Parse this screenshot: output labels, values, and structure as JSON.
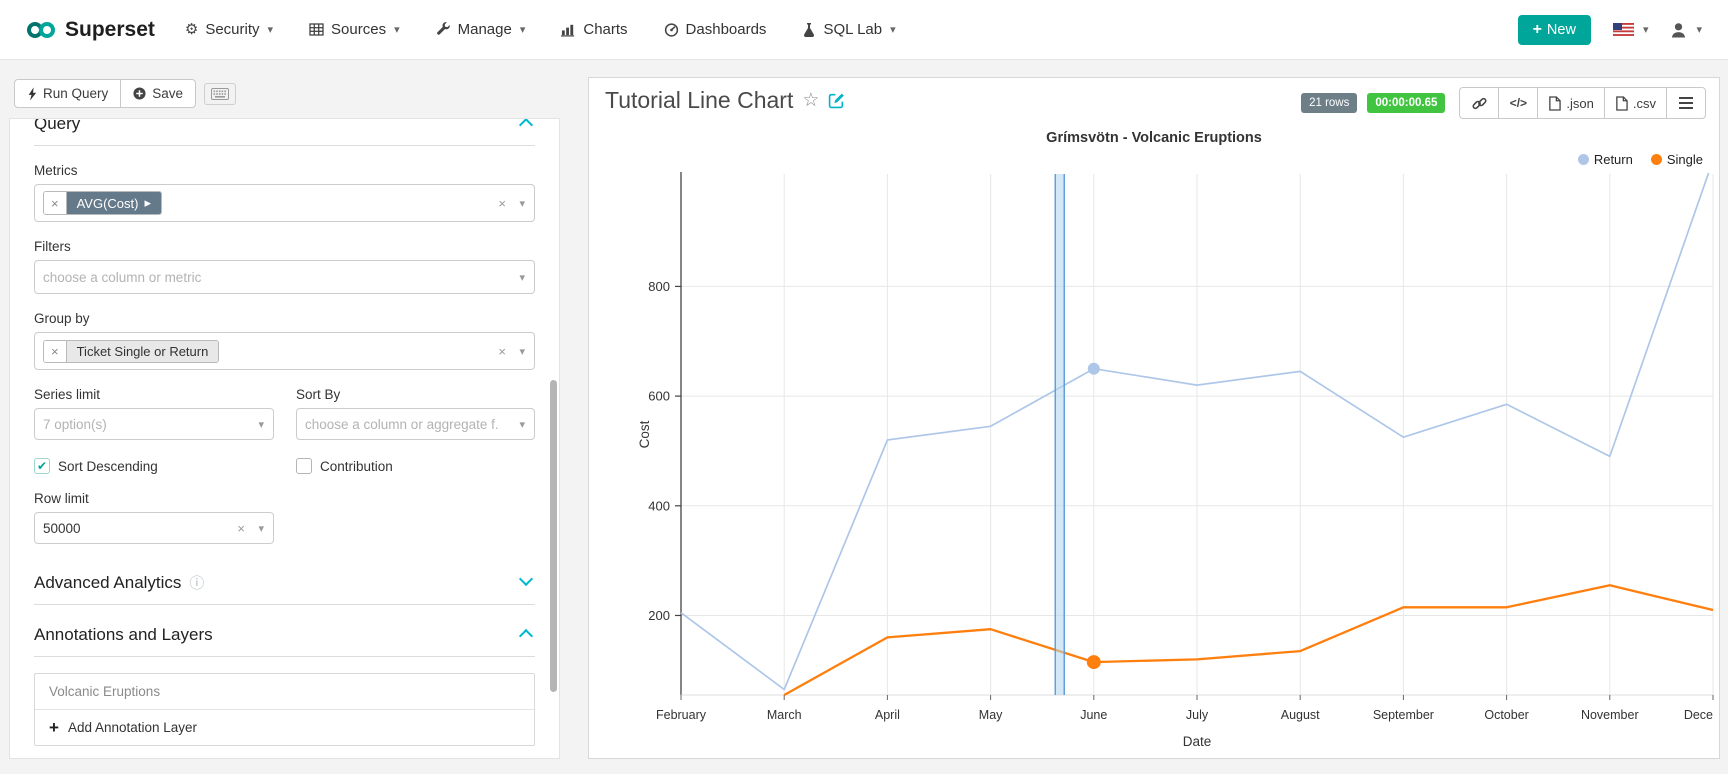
{
  "navbar": {
    "brand": "Superset",
    "items": [
      {
        "label": "Security",
        "icon": "gear-icon",
        "caret": "▾"
      },
      {
        "label": "Sources",
        "icon": "table-icon",
        "caret": "▾"
      },
      {
        "label": "Manage",
        "icon": "wrench-icon",
        "caret": "▾"
      },
      {
        "label": "Charts",
        "icon": "bar-chart-icon",
        "caret": ""
      },
      {
        "label": "Dashboards",
        "icon": "gauge-icon",
        "caret": ""
      },
      {
        "label": "SQL Lab",
        "icon": "flask-icon",
        "caret": "▾"
      }
    ],
    "new_button_label": "New"
  },
  "toolbar": {
    "run_query_label": "Run Query",
    "save_label": "Save"
  },
  "panel": {
    "query_section_title": "Query",
    "metrics_label": "Metrics",
    "metric_token": "AVG(Cost)",
    "metric_token_caret": "▸",
    "filters_label": "Filters",
    "filters_placeholder": "choose a column or metric",
    "group_by_label": "Group by",
    "group_by_token": "Ticket Single or Return",
    "series_limit_label": "Series limit",
    "series_limit_placeholder": "7 option(s)",
    "sort_by_label": "Sort By",
    "sort_by_placeholder": "choose a column or aggregate f.",
    "sort_descending_label": "Sort Descending",
    "sort_descending_checked": true,
    "contribution_label": "Contribution",
    "contribution_checked": false,
    "row_limit_label": "Row limit",
    "row_limit_value": "50000",
    "advanced_section_title": "Advanced Analytics",
    "annotations_section_title": "Annotations and Layers",
    "annotation_layer_name": "Volcanic Eruptions",
    "add_annotation_label": "Add Annotation Layer"
  },
  "chart_header": {
    "title": "Tutorial Line Chart",
    "rows_badge": "21 rows",
    "duration_badge": "00:00:00.65",
    "json_label": ".json",
    "csv_label": ".csv"
  },
  "chart_data": {
    "type": "line",
    "title": "Grímsvötn - Volcanic Eruptions",
    "xlabel": "Date",
    "ylabel": "Cost",
    "categories": [
      "February",
      "March",
      "April",
      "May",
      "June",
      "July",
      "August",
      "September",
      "October",
      "November",
      "Dece"
    ],
    "series": [
      {
        "name": "Return",
        "color": "#aec7e8",
        "values": [
          205,
          65,
          520,
          545,
          650,
          620,
          645,
          525,
          585,
          490,
          1030
        ]
      },
      {
        "name": "Single",
        "color": "#ff7f0e",
        "values": [
          null,
          55,
          160,
          175,
          115,
          120,
          135,
          215,
          215,
          255,
          210
        ]
      }
    ],
    "yticks": [
      200,
      400,
      600,
      800
    ],
    "ylim": [
      55,
      1005
    ],
    "grid": true,
    "legend_position": "top-right",
    "highlight_index": 4,
    "annotation_band": {
      "label": "Volcanic Eruptions",
      "x_index": 3.67,
      "color": "#5b9bd5"
    }
  }
}
